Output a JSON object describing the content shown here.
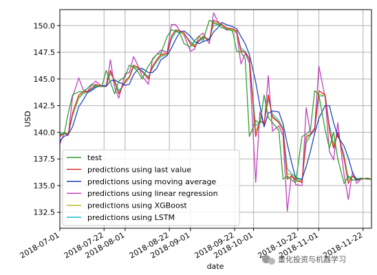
{
  "chart_data": {
    "type": "line",
    "title": "",
    "xlabel": "date",
    "ylabel": "USD",
    "xlim": [
      "2018-07-01",
      "2018-11-26"
    ],
    "ylim": [
      131.0,
      151.5
    ],
    "grid": true,
    "legend_position": "lower-left",
    "x_ticks": [
      "2018-07-01",
      "2018-07-22",
      "2018-08-01",
      "2018-08-22",
      "2018-09-01",
      "2018-09-22",
      "2018-10-01",
      "2018-10-22",
      "2018-11-01",
      "2018-11-22"
    ],
    "y_ticks": [
      132.5,
      135.0,
      137.5,
      140.0,
      142.5,
      145.0,
      147.5,
      150.0
    ],
    "y_tick_labels": [
      "132.5",
      "135.0",
      "137.5",
      "140.0",
      "142.5",
      "145.0",
      "147.5",
      "150.0"
    ],
    "x": [
      "2018-07-01",
      "2018-07-03",
      "2018-07-05",
      "2018-07-07",
      "2018-07-10",
      "2018-07-12",
      "2018-07-14",
      "2018-07-16",
      "2018-07-18",
      "2018-07-21",
      "2018-07-23",
      "2018-07-25",
      "2018-07-27",
      "2018-07-29",
      "2018-08-01",
      "2018-08-03",
      "2018-08-05",
      "2018-08-07",
      "2018-08-09",
      "2018-08-12",
      "2018-08-14",
      "2018-08-16",
      "2018-08-18",
      "2018-08-21",
      "2018-08-23",
      "2018-08-25",
      "2018-08-27",
      "2018-08-29",
      "2018-09-01",
      "2018-09-03",
      "2018-09-05",
      "2018-09-07",
      "2018-09-10",
      "2018-09-12",
      "2018-09-14",
      "2018-09-16",
      "2018-09-18",
      "2018-09-21",
      "2018-09-23",
      "2018-09-25",
      "2018-09-27",
      "2018-09-29",
      "2018-10-02",
      "2018-10-04",
      "2018-10-06",
      "2018-10-08",
      "2018-10-10",
      "2018-10-13",
      "2018-10-15",
      "2018-10-17",
      "2018-10-19",
      "2018-10-21",
      "2018-10-24",
      "2018-10-26",
      "2018-10-28",
      "2018-10-30",
      "2018-11-01",
      "2018-11-04",
      "2018-11-06",
      "2018-11-08",
      "2018-11-10",
      "2018-11-13",
      "2018-11-15",
      "2018-11-17",
      "2018-11-19",
      "2018-11-21",
      "2018-11-24",
      "2018-11-26"
    ],
    "series": [
      {
        "name": "test",
        "color": "#2ca02c",
        "values": [
          139.9,
          139.8,
          141.8,
          143.5,
          143.8,
          143.8,
          144.1,
          144.5,
          144.3,
          144.3,
          145.8,
          144.7,
          143.6,
          144.8,
          145.2,
          146.3,
          146.1,
          145.7,
          145.0,
          146.2,
          146.8,
          147.3,
          147.4,
          149.0,
          149.6,
          149.5,
          149.3,
          148.3,
          148.0,
          148.6,
          149.0,
          148.6,
          150.5,
          150.3,
          150.1,
          149.8,
          149.7,
          149.5,
          147.6,
          147.5,
          146.9,
          139.6,
          141.1,
          140.8,
          143.5,
          141.4,
          140.9,
          140.2,
          135.6,
          135.9,
          135.5,
          135.3,
          139.6,
          139.8,
          140.2,
          143.9,
          143.5,
          140.2,
          138.5,
          140.0,
          137.5,
          135.2,
          135.9,
          135.5,
          135.6,
          135.7,
          135.6,
          135.6
        ]
      },
      {
        "name": "predictions using last value",
        "color": "#d62728",
        "values": [
          139.6,
          139.9,
          139.8,
          141.8,
          143.5,
          143.8,
          143.8,
          144.1,
          144.5,
          144.3,
          144.3,
          145.8,
          144.7,
          143.6,
          144.8,
          145.2,
          146.3,
          146.1,
          145.7,
          145.0,
          146.2,
          146.8,
          147.3,
          147.4,
          149.0,
          149.6,
          149.5,
          149.3,
          148.3,
          148.0,
          148.6,
          149.0,
          148.6,
          150.5,
          150.3,
          150.1,
          149.8,
          149.7,
          149.5,
          147.6,
          147.5,
          146.9,
          139.6,
          141.1,
          140.8,
          143.5,
          141.4,
          140.9,
          140.2,
          135.6,
          135.9,
          135.5,
          135.3,
          139.6,
          139.8,
          140.2,
          143.9,
          143.5,
          140.2,
          138.5,
          140.0,
          137.5,
          135.2,
          135.9,
          135.5,
          135.6,
          135.7,
          135.6
        ]
      },
      {
        "name": "predictions using moving average",
        "color": "#1f3fbf",
        "values": [
          139.2,
          139.6,
          139.8,
          140.5,
          142.4,
          143.0,
          143.7,
          143.9,
          144.2,
          144.4,
          144.3,
          144.8,
          144.9,
          144.7,
          144.4,
          144.5,
          145.4,
          145.9,
          146.0,
          145.6,
          145.6,
          146.0,
          146.8,
          147.2,
          147.9,
          148.7,
          149.4,
          149.5,
          149.0,
          148.5,
          148.3,
          148.5,
          148.7,
          149.4,
          149.8,
          150.3,
          150.1,
          149.9,
          149.7,
          149.0,
          148.3,
          147.3,
          144.7,
          142.5,
          140.5,
          141.8,
          142.0,
          141.9,
          140.8,
          138.9,
          137.2,
          135.7,
          135.6,
          136.8,
          138.2,
          139.9,
          141.3,
          142.5,
          142.5,
          140.9,
          139.6,
          138.7,
          137.6,
          136.2,
          135.5,
          135.7,
          135.6,
          135.6
        ]
      },
      {
        "name": "predictions using linear regression",
        "color": "#bf3fbf",
        "values": [
          138.9,
          139.9,
          139.7,
          143.3,
          145.1,
          144.0,
          143.8,
          144.4,
          144.8,
          144.3,
          144.3,
          146.8,
          144.2,
          143.2,
          145.5,
          145.6,
          147.1,
          146.3,
          145.3,
          144.5,
          146.9,
          147.3,
          147.7,
          147.5,
          150.1,
          150.1,
          149.5,
          149.1,
          147.6,
          147.8,
          149.0,
          149.3,
          148.3,
          151.2,
          150.4,
          150.0,
          149.6,
          149.6,
          149.3,
          146.4,
          147.4,
          146.5,
          135.3,
          141.9,
          140.6,
          145.3,
          140.1,
          140.6,
          139.7,
          132.6,
          136.1,
          135.1,
          135.0,
          142.3,
          139.9,
          140.4,
          146.2,
          143.2,
          138.2,
          137.4,
          140.9,
          136.0,
          133.7,
          136.3,
          135.2,
          135.6,
          135.7,
          135.6
        ]
      },
      {
        "name": "predictions using XGBoost",
        "color": "#bcbd22",
        "values": [
          139.7,
          139.9,
          139.9,
          141.6,
          143.3,
          143.7,
          143.8,
          144.1,
          144.4,
          144.3,
          144.3,
          145.6,
          144.8,
          143.7,
          144.7,
          145.1,
          146.2,
          146.0,
          145.7,
          145.1,
          146.1,
          146.7,
          147.2,
          147.3,
          148.9,
          149.5,
          149.4,
          149.2,
          148.4,
          148.1,
          148.6,
          148.9,
          148.7,
          150.2,
          150.2,
          150.0,
          149.8,
          149.6,
          149.4,
          147.7,
          147.5,
          146.8,
          140.1,
          141.0,
          140.9,
          143.3,
          141.5,
          141.0,
          140.3,
          136.1,
          136.0,
          135.6,
          135.4,
          139.3,
          139.8,
          140.2,
          143.6,
          143.4,
          140.4,
          138.7,
          139.9,
          137.7,
          135.5,
          135.9,
          135.6,
          135.6,
          135.7,
          135.6
        ]
      },
      {
        "name": "predictions using LSTM",
        "color": "#17becf",
        "values": [
          139.8,
          140.0,
          139.8,
          141.5,
          143.2,
          143.6,
          143.8,
          144.0,
          144.3,
          144.3,
          144.4,
          145.5,
          144.9,
          143.9,
          144.6,
          145.1,
          146.1,
          146.0,
          145.8,
          145.2,
          146.0,
          146.6,
          147.1,
          147.3,
          148.7,
          149.4,
          149.4,
          149.2,
          148.5,
          148.2,
          148.5,
          148.8,
          148.8,
          150.0,
          150.1,
          150.0,
          149.8,
          149.6,
          149.4,
          147.9,
          147.6,
          146.9,
          140.6,
          141.0,
          140.9,
          143.1,
          141.7,
          141.1,
          140.4,
          136.6,
          136.1,
          135.8,
          135.5,
          139.0,
          139.7,
          140.2,
          143.4,
          143.4,
          140.7,
          138.9,
          139.8,
          137.9,
          135.7,
          135.9,
          135.7,
          135.6,
          135.7,
          135.6
        ]
      }
    ]
  },
  "watermark": {
    "text": "量化投资与机器学习",
    "icon": "wechat-icon"
  }
}
